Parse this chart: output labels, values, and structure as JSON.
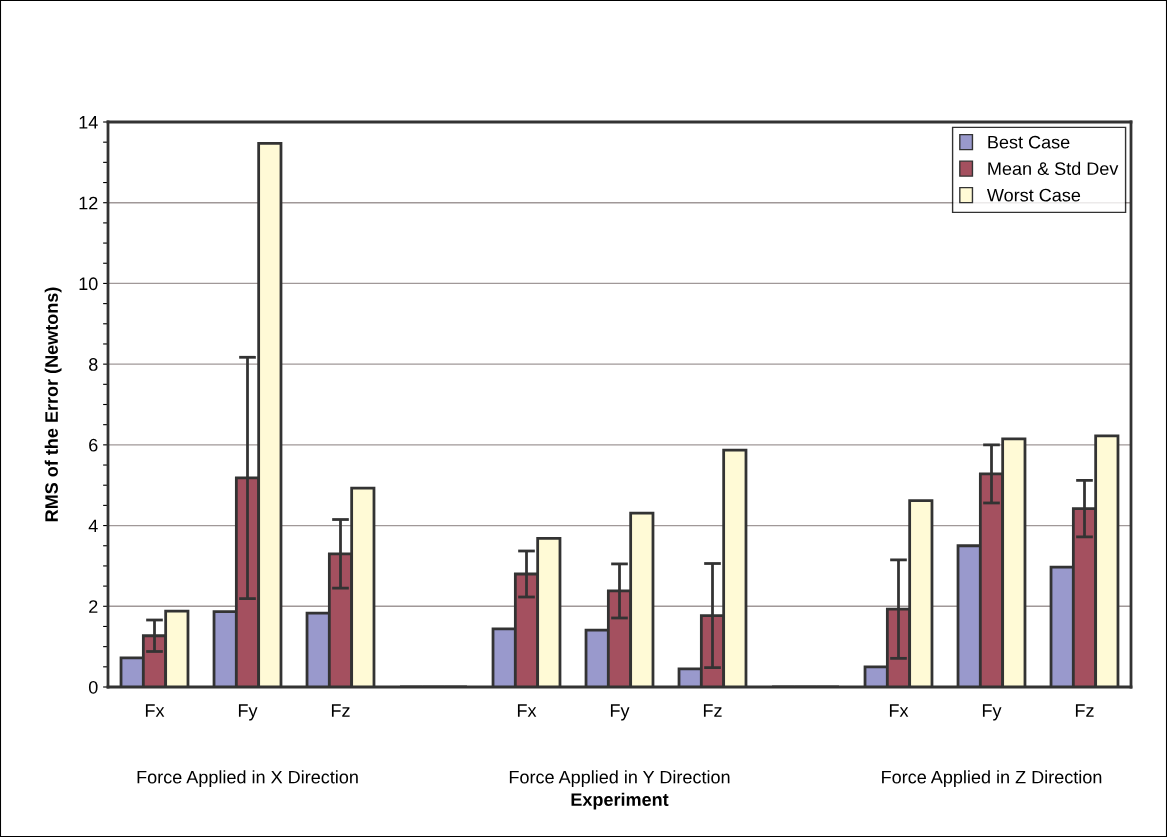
{
  "chart_data": {
    "type": "bar",
    "xlabel": "Experiment",
    "ylabel": "RMS of the Error (Newtons)",
    "categories": [
      "Fx",
      "Fy",
      "Fz",
      null,
      "Fx",
      "Fy",
      "Fz",
      null,
      "Fx",
      "Fy",
      "Fz"
    ],
    "series": [
      {
        "name": "Best Case",
        "color": "#9999cc",
        "values": [
          0.72,
          1.87,
          1.83,
          0,
          1.44,
          1.41,
          0.45,
          0,
          0.5,
          3.5,
          2.97
        ]
      },
      {
        "name": "Mean & Std Dev",
        "color": "#a4505f",
        "values": [
          1.27,
          5.18,
          3.3,
          0,
          2.8,
          2.38,
          1.77,
          0,
          1.93,
          5.28,
          4.42
        ],
        "errors": [
          0.39,
          2.99,
          0.85,
          null,
          0.57,
          0.67,
          1.29,
          null,
          1.22,
          0.72,
          0.7
        ]
      },
      {
        "name": "Worst Case",
        "color": "#fffad6",
        "values": [
          1.88,
          13.47,
          4.93,
          0,
          3.68,
          4.31,
          5.87,
          0,
          4.62,
          6.15,
          6.22
        ]
      }
    ],
    "annotations": [
      "Force Applied in X Direction",
      "Force Applied in Y Direction",
      "Force Applied in Z Direction"
    ],
    "ylim": [
      0,
      14
    ],
    "yticks": [
      0,
      {
        "value": 0.5,
        "label": null
      },
      {
        "value": 1,
        "label": null
      },
      {
        "value": 1.5,
        "label": null
      },
      2,
      {
        "value": 2.5,
        "label": null
      },
      {
        "value": 3,
        "label": null
      },
      {
        "value": 3.5,
        "label": null
      },
      4,
      {
        "value": 4.5,
        "label": null
      },
      {
        "value": 5,
        "label": null
      },
      {
        "value": 5.5,
        "label": null
      },
      6,
      {
        "value": 6.5,
        "label": null
      },
      {
        "value": 7,
        "label": null
      },
      {
        "value": 7.5,
        "label": null
      },
      8,
      {
        "value": 8.5,
        "label": null
      },
      {
        "value": 9,
        "label": null
      },
      {
        "value": 9.5,
        "label": null
      },
      10,
      {
        "value": 10.5,
        "label": null
      },
      {
        "value": 11,
        "label": null
      },
      {
        "value": 11.5,
        "label": null
      },
      12,
      {
        "value": 12.5,
        "label": null
      },
      {
        "value": 13,
        "label": null
      },
      {
        "value": 13.5,
        "label": null
      },
      14
    ],
    "grid": "y",
    "legend": "top right"
  }
}
